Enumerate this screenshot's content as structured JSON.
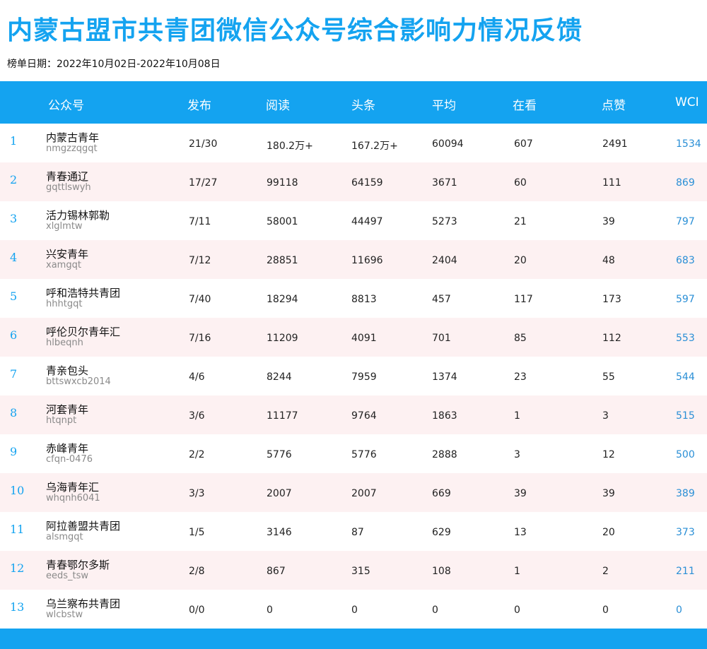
{
  "title": "内蒙古盟市共青团微信公众号综合影响力情况反馈",
  "date_range": "榜单日期：2022年10月02日-2022年10月08日",
  "colors": {
    "accent": "#14a3f0",
    "stripe": "#fdf1f2",
    "wci": "#2a8fd6"
  },
  "columns": [
    "公众号",
    "发布",
    "阅读",
    "头条",
    "平均",
    "在看",
    "点赞",
    "WCI"
  ],
  "rows": [
    {
      "rank": "1",
      "name": "内蒙古青年",
      "account": "nmgzzqgqt",
      "publish": "21/30",
      "read": "180.2万+",
      "headline": "167.2万+",
      "avg": "60094",
      "watching": "607",
      "likes": "2491",
      "wci": "1534"
    },
    {
      "rank": "2",
      "name": "青春通辽",
      "account": "gqttlswyh",
      "publish": "17/27",
      "read": "99118",
      "headline": "64159",
      "avg": "3671",
      "watching": "60",
      "likes": "111",
      "wci": "869"
    },
    {
      "rank": "3",
      "name": "活力锡林郭勒",
      "account": "xlglmtw",
      "publish": "7/11",
      "read": "58001",
      "headline": "44497",
      "avg": "5273",
      "watching": "21",
      "likes": "39",
      "wci": "797"
    },
    {
      "rank": "4",
      "name": "兴安青年",
      "account": "xamgqt",
      "publish": "7/12",
      "read": "28851",
      "headline": "11696",
      "avg": "2404",
      "watching": "20",
      "likes": "48",
      "wci": "683"
    },
    {
      "rank": "5",
      "name": "呼和浩特共青团",
      "account": "hhhtgqt",
      "publish": "7/40",
      "read": "18294",
      "headline": "8813",
      "avg": "457",
      "watching": "117",
      "likes": "173",
      "wci": "597"
    },
    {
      "rank": "6",
      "name": "呼伦贝尔青年汇",
      "account": "hlbeqnh",
      "publish": "7/16",
      "read": "11209",
      "headline": "4091",
      "avg": "701",
      "watching": "85",
      "likes": "112",
      "wci": "553"
    },
    {
      "rank": "7",
      "name": "青亲包头",
      "account": "bttswxcb2014",
      "publish": "4/6",
      "read": "8244",
      "headline": "7959",
      "avg": "1374",
      "watching": "23",
      "likes": "55",
      "wci": "544"
    },
    {
      "rank": "8",
      "name": "河套青年",
      "account": "htqnpt",
      "publish": "3/6",
      "read": "11177",
      "headline": "9764",
      "avg": "1863",
      "watching": "1",
      "likes": "3",
      "wci": "515"
    },
    {
      "rank": "9",
      "name": "赤峰青年",
      "account": "cfqn-0476",
      "publish": "2/2",
      "read": "5776",
      "headline": "5776",
      "avg": "2888",
      "watching": "3",
      "likes": "12",
      "wci": "500"
    },
    {
      "rank": "10",
      "name": "乌海青年汇",
      "account": "whqnh6041",
      "publish": "3/3",
      "read": "2007",
      "headline": "2007",
      "avg": "669",
      "watching": "39",
      "likes": "39",
      "wci": "389"
    },
    {
      "rank": "11",
      "name": "阿拉善盟共青团",
      "account": "alsmgqt",
      "publish": "1/5",
      "read": "3146",
      "headline": "87",
      "avg": "629",
      "watching": "13",
      "likes": "20",
      "wci": "373"
    },
    {
      "rank": "12",
      "name": "青春鄂尔多斯",
      "account": "eeds_tsw",
      "publish": "2/8",
      "read": "867",
      "headline": "315",
      "avg": "108",
      "watching": "1",
      "likes": "2",
      "wci": "211"
    },
    {
      "rank": "13",
      "name": "乌兰察布共青团",
      "account": "wlcbstw",
      "publish": "0/0",
      "read": "0",
      "headline": "0",
      "avg": "0",
      "watching": "0",
      "likes": "0",
      "wci": "0"
    }
  ]
}
